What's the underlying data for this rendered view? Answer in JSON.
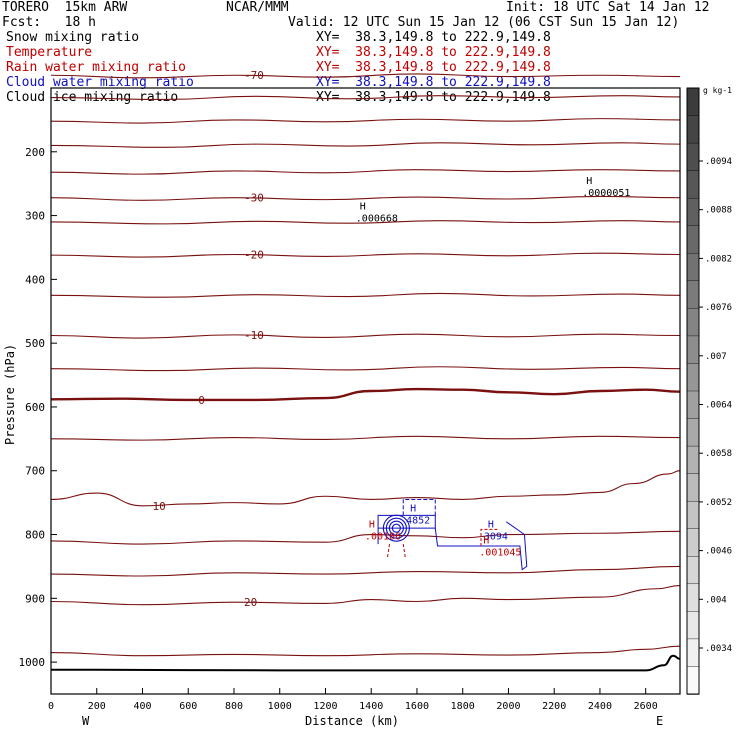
{
  "header": {
    "model": "TORERO  15km ARW",
    "org": "NCAR/MMM",
    "init": "Init: 18 UTC Sat 14 Jan 12",
    "fcst": "Fcst:   18 h",
    "valid": "Valid: 12 UTC Sun 15 Jan 12 (06 CST Sun 15 Jan 12)"
  },
  "fields": [
    {
      "name": "Snow mixing ratio",
      "xy": "XY=  38.3,149.8 to 222.9,149.8",
      "color": "#000000"
    },
    {
      "name": "Temperature",
      "xy": "XY=  38.3,149.8 to 222.9,149.8",
      "color": "#c00000"
    },
    {
      "name": "Rain water mixing ratio",
      "xy": "XY=  38.3,149.8 to 222.9,149.8",
      "color": "#c00000"
    },
    {
      "name": "Cloud water mixing ratio",
      "xy": "XY=  38.3,149.8 to 222.9,149.8",
      "color": "#1010c0"
    },
    {
      "name": "Cloud ice mixing ratio",
      "xy": "XY=  38.3,149.8 to 222.9,149.8",
      "color": "#000000"
    }
  ],
  "chart_data": {
    "type": "line",
    "xlabel": "Distance (km)",
    "ylabel": "Pressure (hPa)",
    "xlim": [
      0,
      2750
    ],
    "ylim": [
      1050,
      100
    ],
    "x_ticks": [
      0,
      200,
      400,
      600,
      800,
      1000,
      1200,
      1400,
      1600,
      1800,
      2000,
      2200,
      2400,
      2600
    ],
    "y_ticks": [
      200,
      300,
      400,
      500,
      600,
      700,
      800,
      900,
      1000
    ],
    "x_end_labels": {
      "left": "W",
      "right": "E"
    },
    "colorbar": {
      "unit": "g kg-1",
      "ticks": [
        ".0094",
        ".0088",
        ".0082",
        ".0076",
        ".007",
        ".0064",
        ".0058",
        ".0052",
        ".0046",
        ".004",
        ".0034"
      ]
    },
    "isotherms": [
      {
        "label": "-70",
        "points": [
          [
            0,
            80
          ],
          [
            400,
            84
          ],
          [
            800,
            80
          ],
          [
            1200,
            83
          ],
          [
            1600,
            78
          ],
          [
            2000,
            82
          ],
          [
            2400,
            80
          ],
          [
            2750,
            82
          ]
        ]
      },
      {
        "label": "",
        "points": [
          [
            0,
            115
          ],
          [
            500,
            118
          ],
          [
            900,
            113
          ],
          [
            1300,
            117
          ],
          [
            1700,
            112
          ],
          [
            2100,
            115
          ],
          [
            2500,
            112
          ],
          [
            2750,
            114
          ]
        ]
      },
      {
        "label": "",
        "points": [
          [
            0,
            152
          ],
          [
            400,
            155
          ],
          [
            800,
            150
          ],
          [
            1200,
            153
          ],
          [
            1600,
            149
          ],
          [
            2000,
            152
          ],
          [
            2400,
            148
          ],
          [
            2750,
            150
          ]
        ]
      },
      {
        "label": "",
        "points": [
          [
            0,
            190
          ],
          [
            500,
            193
          ],
          [
            900,
            188
          ],
          [
            1300,
            191
          ],
          [
            1700,
            186
          ],
          [
            2100,
            189
          ],
          [
            2500,
            186
          ],
          [
            2750,
            188
          ]
        ]
      },
      {
        "label": "",
        "points": [
          [
            0,
            232
          ],
          [
            400,
            235
          ],
          [
            800,
            230
          ],
          [
            1200,
            233
          ],
          [
            1600,
            228
          ],
          [
            2000,
            231
          ],
          [
            2400,
            228
          ],
          [
            2750,
            230
          ]
        ]
      },
      {
        "label": "-30",
        "points": [
          [
            0,
            272
          ],
          [
            400,
            276
          ],
          [
            800,
            272
          ],
          [
            1200,
            275
          ],
          [
            1600,
            271
          ],
          [
            2000,
            274
          ],
          [
            2400,
            270
          ],
          [
            2750,
            272
          ]
        ]
      },
      {
        "label": "",
        "points": [
          [
            0,
            310
          ],
          [
            500,
            313
          ],
          [
            900,
            309
          ],
          [
            1300,
            312
          ],
          [
            1700,
            308
          ],
          [
            2100,
            311
          ],
          [
            2500,
            308
          ],
          [
            2750,
            310
          ]
        ]
      },
      {
        "label": "-20",
        "points": [
          [
            0,
            362
          ],
          [
            400,
            365
          ],
          [
            800,
            361
          ],
          [
            1200,
            364
          ],
          [
            1600,
            360
          ],
          [
            2000,
            363
          ],
          [
            2400,
            359
          ],
          [
            2750,
            361
          ]
        ]
      },
      {
        "label": "",
        "points": [
          [
            0,
            425
          ],
          [
            500,
            428
          ],
          [
            900,
            424
          ],
          [
            1300,
            427
          ],
          [
            1700,
            422
          ],
          [
            2100,
            426
          ],
          [
            2500,
            423
          ],
          [
            2750,
            425
          ]
        ]
      },
      {
        "label": "-10",
        "points": [
          [
            0,
            488
          ],
          [
            400,
            492
          ],
          [
            800,
            487
          ],
          [
            1200,
            491
          ],
          [
            1600,
            486
          ],
          [
            2000,
            490
          ],
          [
            2400,
            486
          ],
          [
            2750,
            488
          ]
        ]
      },
      {
        "label": "",
        "points": [
          [
            0,
            540
          ],
          [
            500,
            543
          ],
          [
            900,
            539
          ],
          [
            1300,
            542
          ],
          [
            1700,
            537
          ],
          [
            2100,
            541
          ],
          [
            2500,
            538
          ],
          [
            2750,
            540
          ]
        ]
      },
      {
        "label": "0",
        "points": [
          [
            0,
            588
          ],
          [
            300,
            587
          ],
          [
            600,
            589
          ],
          [
            900,
            589
          ],
          [
            1200,
            586
          ],
          [
            1400,
            575
          ],
          [
            1600,
            572
          ],
          [
            1800,
            573
          ],
          [
            2000,
            577
          ],
          [
            2200,
            580
          ],
          [
            2400,
            575
          ],
          [
            2600,
            573
          ],
          [
            2750,
            576
          ]
        ]
      },
      {
        "label": "",
        "points": [
          [
            0,
            650
          ],
          [
            400,
            652
          ],
          [
            800,
            648
          ],
          [
            1200,
            651
          ],
          [
            1600,
            646
          ],
          [
            2000,
            650
          ],
          [
            2400,
            646
          ],
          [
            2750,
            648
          ]
        ]
      },
      {
        "label": "10",
        "points": [
          [
            0,
            745
          ],
          [
            200,
            735
          ],
          [
            400,
            755
          ],
          [
            600,
            752
          ],
          [
            800,
            750
          ],
          [
            1000,
            752
          ],
          [
            1200,
            740
          ],
          [
            1400,
            745
          ],
          [
            1600,
            742
          ],
          [
            1800,
            745
          ],
          [
            2000,
            740
          ],
          [
            2200,
            738
          ],
          [
            2400,
            734
          ],
          [
            2550,
            720
          ],
          [
            2700,
            705
          ],
          [
            2750,
            700
          ]
        ]
      },
      {
        "label": "",
        "points": [
          [
            0,
            810
          ],
          [
            400,
            815
          ],
          [
            800,
            810
          ],
          [
            1200,
            812
          ],
          [
            1400,
            800
          ],
          [
            1600,
            802
          ],
          [
            1800,
            805
          ],
          [
            2000,
            800
          ],
          [
            2400,
            798
          ],
          [
            2750,
            795
          ]
        ]
      },
      {
        "label": "",
        "points": [
          [
            0,
            862
          ],
          [
            400,
            865
          ],
          [
            800,
            860
          ],
          [
            1200,
            862
          ],
          [
            1600,
            858
          ],
          [
            2000,
            860
          ],
          [
            2400,
            855
          ],
          [
            2750,
            850
          ]
        ]
      },
      {
        "label": "20",
        "points": [
          [
            0,
            905
          ],
          [
            400,
            910
          ],
          [
            800,
            906
          ],
          [
            1200,
            908
          ],
          [
            1400,
            902
          ],
          [
            1600,
            905
          ],
          [
            1800,
            900
          ],
          [
            2000,
            902
          ],
          [
            2400,
            898
          ],
          [
            2650,
            885
          ],
          [
            2750,
            880
          ]
        ]
      },
      {
        "label": "",
        "points": [
          [
            0,
            985
          ],
          [
            400,
            990
          ],
          [
            800,
            988
          ],
          [
            1200,
            990
          ],
          [
            1600,
            987
          ],
          [
            2000,
            989
          ],
          [
            2400,
            985
          ],
          [
            2600,
            980
          ],
          [
            2750,
            975
          ]
        ]
      }
    ],
    "terrain": [
      [
        0,
        1012
      ],
      [
        200,
        1012
      ],
      [
        1000,
        1013
      ],
      [
        1600,
        1013
      ],
      [
        2600,
        1013
      ],
      [
        2680,
        1005
      ],
      [
        2720,
        990
      ],
      [
        2750,
        995
      ]
    ],
    "annotations": [
      {
        "label": "H",
        "value": ".0000051",
        "x": 2340,
        "p": 257,
        "color": "#000000"
      },
      {
        "label": "H",
        "value": ".000668",
        "x": 1350,
        "p": 297,
        "color": "#000000"
      },
      {
        "label": "H",
        "value": "4852",
        "x": 1570,
        "p": 770,
        "color": "#1010c0"
      },
      {
        "label": "H",
        "value": "3094",
        "x": 1910,
        "p": 795,
        "color": "#1010c0"
      },
      {
        "label": "H",
        "value": ".00106",
        "x": 1390,
        "p": 795,
        "color": "#c00000"
      },
      {
        "label": "H",
        "value": ".001045",
        "x": 1890,
        "p": 820,
        "color": "#c00000"
      }
    ]
  }
}
